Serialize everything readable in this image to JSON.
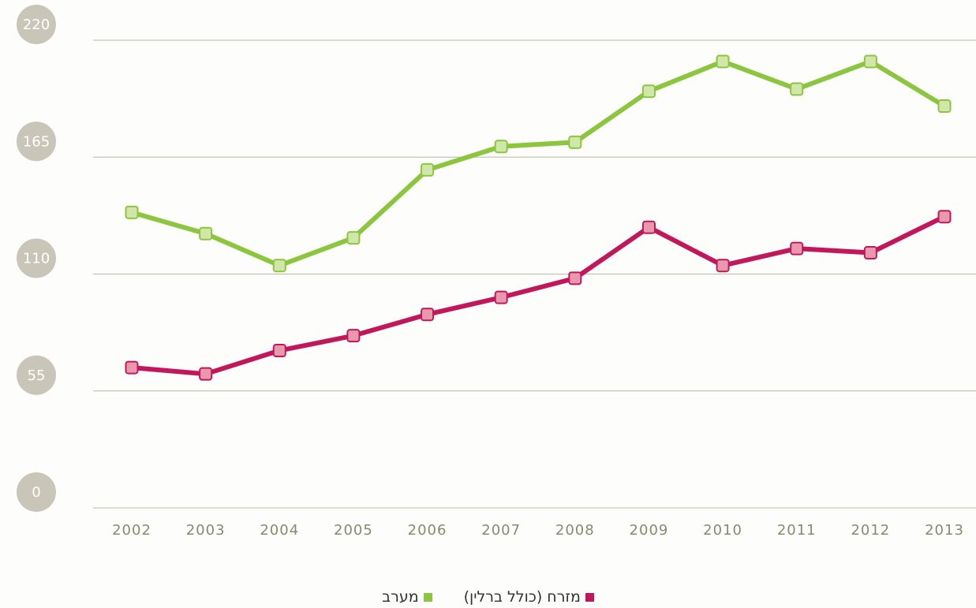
{
  "chart_data": {
    "type": "line",
    "categories": [
      "2002",
      "2003",
      "2004",
      "2005",
      "2006",
      "2007",
      "2008",
      "2009",
      "2010",
      "2011",
      "2012",
      "2013"
    ],
    "series": [
      {
        "name": "מזרח (כולל ברלין)",
        "color": "#c2185b",
        "marker_fill": "#e899ad",
        "values": [
          66,
          63,
          74,
          81,
          91,
          99,
          108,
          132,
          114,
          122,
          120,
          137
        ]
      },
      {
        "name": "מערב",
        "color": "#8cc63f",
        "marker_fill": "#d0e7a9",
        "values": [
          139,
          129,
          114,
          127,
          159,
          170,
          172,
          196,
          210,
          197,
          210,
          189
        ]
      }
    ],
    "ylim": [
      0,
      220
    ],
    "yticks": [
      0,
      55,
      110,
      165,
      220
    ],
    "grid": true
  }
}
